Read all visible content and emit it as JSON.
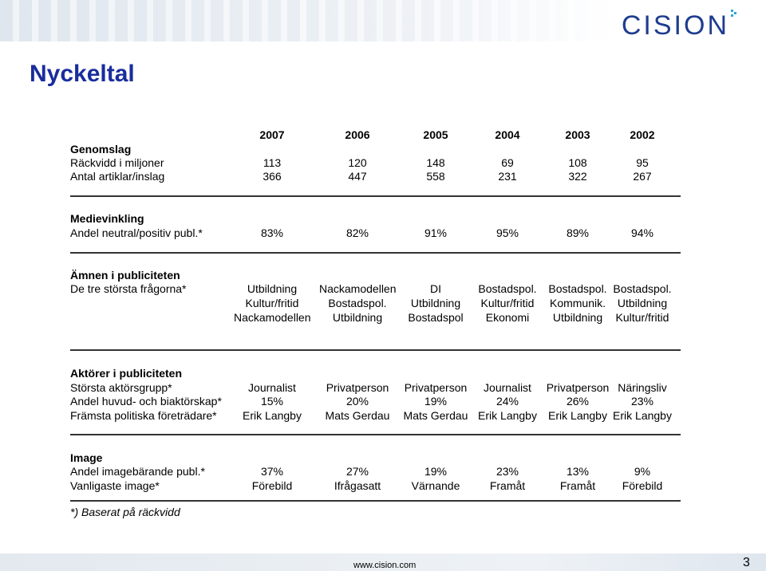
{
  "header": {
    "logo_text": "CISION"
  },
  "title": "Nyckeltal",
  "years": [
    "2007",
    "2006",
    "2005",
    "2004",
    "2003",
    "2002"
  ],
  "sections": {
    "genomslag": {
      "heading": "Genomslag",
      "rows": [
        {
          "label": "Räckvidd i miljoner",
          "values": [
            "113",
            "120",
            "148",
            "69",
            "108",
            "95"
          ]
        },
        {
          "label": "Antal artiklar/inslag",
          "values": [
            "366",
            "447",
            "558",
            "231",
            "322",
            "267"
          ]
        }
      ]
    },
    "medievinkling": {
      "heading": "Medievinkling",
      "rows": [
        {
          "label": "Andel neutral/positiv publ.*",
          "values": [
            "83%",
            "82%",
            "91%",
            "95%",
            "89%",
            "94%"
          ]
        }
      ]
    },
    "amnen": {
      "heading": "Ämnen i publiciteten",
      "label": "De tre största frågorna*",
      "lines": [
        [
          "Utbildning",
          "Nackamodellen",
          "DI",
          "Bostadspol.",
          "Bostadspol.",
          "Bostadspol."
        ],
        [
          "Kultur/fritid",
          "Bostadspol.",
          "Utbildning",
          "Kultur/fritid",
          "Kommunik.",
          "Utbildning"
        ],
        [
          "Nackamodellen",
          "Utbildning",
          "Bostadspol",
          "Ekonomi",
          "Utbildning",
          "Kultur/fritid"
        ]
      ]
    },
    "aktorer": {
      "heading": "Aktörer i publiciteten",
      "rows": [
        {
          "label": "Största aktörsgrupp*",
          "values": [
            "Journalist",
            "Privatperson",
            "Privatperson",
            "Journalist",
            "Privatperson",
            "Näringsliv"
          ]
        },
        {
          "label": "Andel huvud- och biaktörskap*",
          "values": [
            "15%",
            "20%",
            "19%",
            "24%",
            "26%",
            "23%"
          ]
        },
        {
          "label": "Främsta politiska företrädare*",
          "values": [
            "Erik Langby",
            "Mats Gerdau",
            "Mats Gerdau",
            "Erik Langby",
            "Erik Langby",
            "Erik Langby"
          ]
        }
      ]
    },
    "image": {
      "heading": "Image",
      "rows": [
        {
          "label": "Andel imagebärande publ.*",
          "values": [
            "37%",
            "27%",
            "19%",
            "23%",
            "13%",
            "9%"
          ]
        },
        {
          "label": "Vanligaste image*",
          "values": [
            "Förebild",
            "Ifrågasatt",
            "Värnande",
            "Framåt",
            "Framåt",
            "Förebild"
          ]
        }
      ]
    }
  },
  "footnote": "*) Baserat på räckvidd",
  "footer": {
    "url": "www.cision.com",
    "page": "3"
  },
  "colors": {
    "title": "#1a2d9c",
    "logo": "#1e3d8f"
  }
}
